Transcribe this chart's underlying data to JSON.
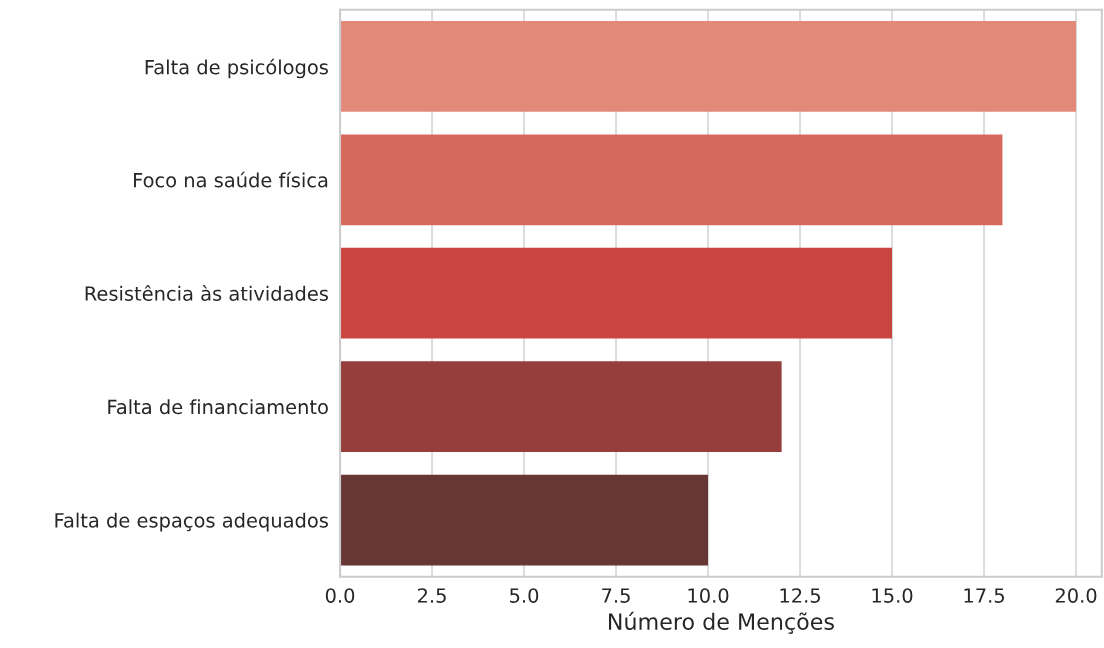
{
  "chart_data": {
    "type": "bar",
    "orientation": "horizontal",
    "xlabel": "Número de Menções",
    "categories": [
      "Falta de psicólogos",
      "Foco na saúde física",
      "Resistência às atividades",
      "Falta de financiamento",
      "Falta de espaços adequados"
    ],
    "values": [
      20,
      18,
      15,
      12,
      10
    ],
    "colors": [
      "#e3897a",
      "#d6685c",
      "#c9453f",
      "#963e3b",
      "#673736"
    ],
    "xlim": [
      0,
      20.7
    ],
    "xticks": [
      {
        "value": 0,
        "label": "0.0"
      },
      {
        "value": 2.5,
        "label": "2.5"
      },
      {
        "value": 5,
        "label": "5.0"
      },
      {
        "value": 7.5,
        "label": "7.5"
      },
      {
        "value": 10,
        "label": "10.0"
      },
      {
        "value": 12.5,
        "label": "12.5"
      },
      {
        "value": 15,
        "label": "15.0"
      },
      {
        "value": 17.5,
        "label": "17.5"
      },
      {
        "value": 20,
        "label": "20.0"
      }
    ],
    "grid": "x"
  }
}
